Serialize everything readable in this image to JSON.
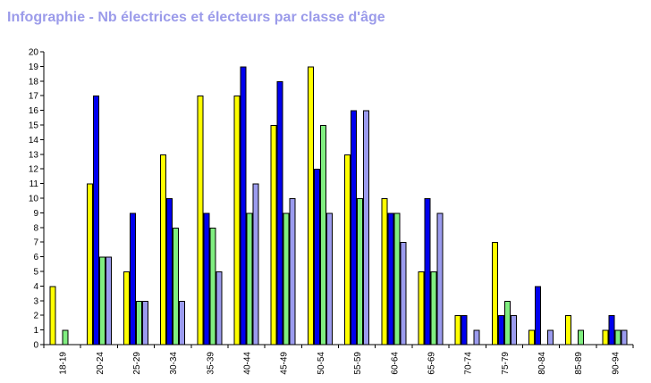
{
  "chart_data": {
    "type": "bar",
    "title": "Infographie - Nb électrices et électeurs par classe d'âge",
    "categories": [
      "18-19",
      "20-24",
      "25-29",
      "30-34",
      "35-39",
      "40-44",
      "45-49",
      "50-54",
      "55-59",
      "60-64",
      "65-69",
      "70-74",
      "75-79",
      "80-84",
      "85-89",
      "90-94"
    ],
    "series": [
      {
        "color": "#ffff00",
        "values": [
          4,
          11,
          5,
          13,
          17,
          17,
          15,
          19,
          13,
          10,
          5,
          2,
          7,
          1,
          2,
          1
        ]
      },
      {
        "color": "#0000ee",
        "values": [
          0,
          17,
          9,
          10,
          9,
          19,
          18,
          12,
          16,
          9,
          10,
          2,
          2,
          4,
          0,
          2
        ]
      },
      {
        "color": "#80ee80",
        "values": [
          1,
          6,
          3,
          8,
          8,
          9,
          9,
          15,
          10,
          9,
          5,
          0,
          3,
          0,
          1,
          1
        ]
      },
      {
        "color": "#9b9bee",
        "values": [
          0,
          6,
          3,
          3,
          5,
          11,
          10,
          9,
          16,
          7,
          9,
          1,
          2,
          1,
          0,
          1
        ]
      }
    ],
    "ylim": [
      0,
      20
    ],
    "yticks": [
      0,
      1,
      2,
      3,
      4,
      5,
      6,
      7,
      8,
      9,
      10,
      11,
      12,
      13,
      14,
      15,
      16,
      17,
      18,
      19,
      20
    ],
    "grid": false,
    "legend": "none"
  }
}
